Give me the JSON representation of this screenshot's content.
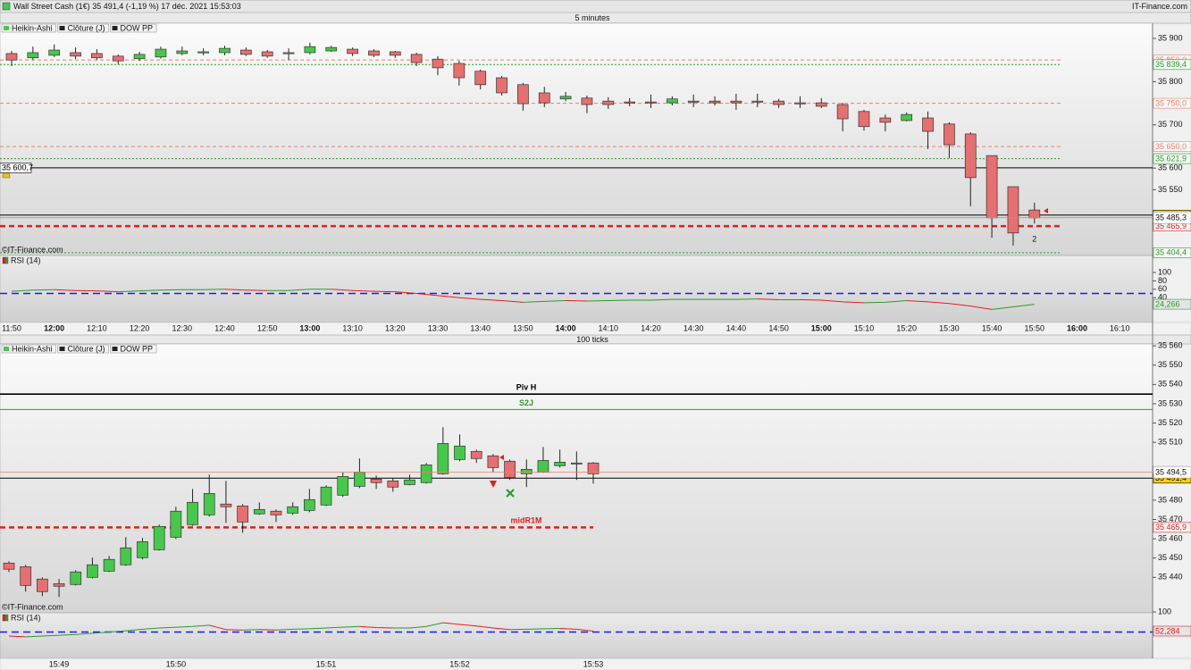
{
  "header": {
    "title": "Wall Street Cash (1€) 35 491,4 (-1,19 %) 17 déc. 2021 15:53:03",
    "brand": "IT-Finance.com"
  },
  "chart_data": [
    {
      "type": "candlestick",
      "title": "5 minutes",
      "legend": [
        "Heikin-Ashi",
        "Clôture (J)",
        "DOW PP"
      ],
      "watermark": "©IT-Finance.com",
      "up_color": "#46c84a",
      "down_color": "#e86f6f",
      "categories": [
        "11:50",
        null,
        "12:00",
        null,
        "12:10",
        null,
        "12:20",
        null,
        "12:30",
        null,
        "12:40",
        null,
        "12:50",
        null,
        "13:00",
        null,
        "13:10",
        null,
        "13:20",
        null,
        "13:30",
        null,
        "13:40",
        null,
        "13:50",
        null,
        "14:00",
        null,
        "14:10",
        null,
        "14:20",
        null,
        "14:30",
        null,
        "14:40",
        null,
        "14:50",
        null,
        "15:00",
        null,
        "15:10",
        null,
        "15:20",
        null,
        "15:30",
        null,
        "15:40",
        null,
        "15:50",
        null,
        "16:00",
        null,
        "16:10"
      ],
      "open": [
        35865,
        35855,
        35861,
        35867,
        35865,
        35859,
        35853,
        35857,
        35865,
        35867,
        35867,
        35873,
        35869,
        35867,
        35867,
        35871,
        35875,
        35871,
        35869,
        35863,
        35852,
        35842,
        35824,
        35809,
        35793,
        35774,
        35760,
        35762,
        35755,
        35753,
        35753,
        35751,
        35755,
        35755,
        35755,
        35755,
        35755,
        35751,
        35751,
        35747,
        35731,
        35716,
        35710,
        35716,
        35702,
        35679,
        35629,
        35557,
        35503,
        null,
        null,
        null,
        null
      ],
      "high": [
        35871,
        35881,
        35886,
        35879,
        35875,
        35863,
        35869,
        35881,
        35881,
        35877,
        35883,
        35879,
        35873,
        35877,
        35890,
        35883,
        35879,
        35875,
        35871,
        35867,
        35859,
        35848,
        35828,
        35813,
        35797,
        35788,
        35776,
        35768,
        35764,
        35762,
        35770,
        35766,
        35770,
        35766,
        35772,
        35772,
        35760,
        35766,
        35762,
        35751,
        35735,
        35724,
        35729,
        35731,
        35706,
        35683,
        35629,
        35557,
        35520,
        null,
        null,
        null,
        null
      ],
      "low": [
        35836,
        35850,
        35857,
        35852,
        35850,
        35840,
        35848,
        35853,
        35861,
        35861,
        35861,
        35859,
        35855,
        35850,
        35863,
        35869,
        35859,
        35857,
        35855,
        35836,
        35815,
        35791,
        35782,
        35768,
        35733,
        35741,
        35755,
        35727,
        35737,
        35743,
        35739,
        35745,
        35741,
        35745,
        35735,
        35741,
        35739,
        35739,
        35739,
        35685,
        35687,
        35685,
        35708,
        35644,
        35623,
        35512,
        35439,
        35421,
        35472,
        null,
        null,
        null,
        null
      ],
      "close": [
        35850,
        35867,
        35873,
        35859,
        35855,
        35848,
        35863,
        35875,
        35871,
        35869,
        35877,
        35863,
        35859,
        35865,
        35881,
        35879,
        35865,
        35861,
        35861,
        35844,
        35832,
        35809,
        35793,
        35774,
        35749,
        35751,
        35766,
        35747,
        35747,
        35751,
        35751,
        35760,
        35753,
        35751,
        35751,
        35753,
        35747,
        35749,
        35743,
        35714,
        35696,
        35706,
        35724,
        35685,
        35654,
        35578,
        35485,
        35450,
        35485,
        null,
        null,
        null,
        null
      ],
      "ylim": [
        35400,
        35933
      ],
      "yticks": [
        {
          "value": 35900,
          "label": "35 900"
        },
        {
          "value": 35800,
          "label": "35 800"
        },
        {
          "value": 35700,
          "label": "35 700"
        },
        {
          "value": 35600,
          "label": "35 600"
        },
        {
          "value": 35550,
          "label": "35 550"
        }
      ],
      "levels": [
        {
          "value": 35850,
          "label": "35 850,0",
          "color": "#e8806a",
          "style": "dashed"
        },
        {
          "value": 35839.4,
          "label": "35 839,4",
          "color": "#2a9a2a",
          "style": "dotted"
        },
        {
          "value": 35750,
          "label": "35 750,0",
          "color": "#e8806a",
          "style": "dashed"
        },
        {
          "value": 35650,
          "label": "35 650,0",
          "color": "#e8806a",
          "style": "dashed"
        },
        {
          "value": 35621.9,
          "label": "35 621,9",
          "color": "#2a9a2a",
          "style": "dotted"
        },
        {
          "value": 35600.7,
          "label": "35 600,7",
          "color": "#000000",
          "style": "solid",
          "full": true,
          "side": "left"
        },
        {
          "value": 35491.4,
          "label": "35 491,4",
          "color": "#000000",
          "style": "solid",
          "full": true,
          "label_bg": "#ffd400"
        },
        {
          "value": 35465.9,
          "label": "35 465,9",
          "color": "#e0201a",
          "style": "bold-dashed"
        },
        {
          "value": 35404.4,
          "label": "35 404,4",
          "color": "#2a9a2a",
          "style": "dotted"
        }
      ],
      "crosshair": {
        "value": 35485.3,
        "label": "35 485,3",
        "color": "#999999"
      },
      "annotations": [
        "2"
      ]
    },
    {
      "type": "line",
      "series": [
        {
          "name": "RSI (14)",
          "color_up": "#2a9a2a",
          "color_down": "#e02020",
          "values": [
            55,
            58,
            59,
            57,
            56,
            54,
            56,
            58,
            59,
            59,
            60,
            58,
            57,
            57,
            60,
            60,
            57,
            55,
            54,
            50,
            45,
            40,
            36,
            33,
            29,
            31,
            33,
            32,
            33,
            34,
            34,
            36,
            36,
            36,
            36,
            37,
            35,
            35,
            34,
            30,
            28,
            29,
            33,
            30,
            26,
            20,
            12,
            18,
            24.266
          ],
          "value_labels": [
            null,
            null,
            null,
            null,
            null,
            null,
            null,
            null,
            null,
            null,
            null,
            null,
            null,
            null,
            null,
            null,
            null,
            null,
            null,
            null,
            null,
            null,
            null,
            null,
            null,
            null,
            null,
            null,
            null,
            null,
            null,
            null,
            null,
            null,
            null,
            null,
            null,
            null,
            null,
            null,
            null,
            null,
            null,
            null,
            null,
            null,
            null,
            null,
            "24,266"
          ]
        }
      ],
      "ylim": [
        0,
        100
      ],
      "yticks": [
        100,
        80,
        60,
        40
      ],
      "levels": [
        {
          "value": 50,
          "color": "#1a1aee",
          "style": "dashed"
        }
      ]
    },
    {
      "type": "candlestick",
      "title": "100 ticks",
      "legend": [
        "Heikin-Ashi",
        "Clôture (J)",
        "DOW PP"
      ],
      "watermark": "©IT-Finance.com",
      "up_color": "#46c84a",
      "down_color": "#e86f6f",
      "categories": [
        null,
        null,
        null,
        "15:49",
        null,
        null,
        null,
        null,
        null,
        null,
        "15:50",
        null,
        null,
        null,
        null,
        null,
        null,
        null,
        null,
        "15:51",
        null,
        null,
        null,
        null,
        null,
        null,
        null,
        "15:52",
        null,
        null,
        null,
        null,
        null,
        null,
        null,
        "15:53"
      ],
      "open": [
        35447.4,
        35445.5,
        35439.1,
        35436.7,
        35436.3,
        35440.0,
        35443.2,
        35446.5,
        35450.2,
        35454.3,
        35460.8,
        35467.3,
        35472.4,
        35478.0,
        35477.0,
        35472.9,
        35474.3,
        35473.3,
        35474.7,
        35477.5,
        35482.6,
        35487.2,
        35490.9,
        35490.0,
        35488.1,
        35489.1,
        35493.7,
        35501.1,
        35505.3,
        35503.0,
        35500.2,
        35493.7,
        35494.6,
        35497.9,
        35498.8,
        35499.3
      ],
      "high": [
        35448.3,
        35446.5,
        35440.0,
        35439.1,
        35443.7,
        35450.2,
        35451.1,
        35460.8,
        35460.4,
        35467.3,
        35476.6,
        35485.8,
        35493.2,
        35490.0,
        35478.0,
        35478.9,
        35475.2,
        35478.9,
        35485.8,
        35487.7,
        35494.6,
        35501.6,
        35492.8,
        35491.4,
        35493.2,
        35499.3,
        35517.8,
        35514.1,
        35506.2,
        35503.9,
        35501.1,
        35501.1,
        35507.6,
        35506.2,
        35505.3,
        35499.7
      ],
      "low": [
        35442.8,
        35432.6,
        35430.3,
        35429.8,
        35435.8,
        35439.5,
        35442.8,
        35446.0,
        35449.3,
        35453.9,
        35459.9,
        35466.8,
        35471.5,
        35468.2,
        35463.1,
        35472.4,
        35468.7,
        35472.4,
        35473.8,
        35477.0,
        35481.7,
        35486.3,
        35485.8,
        35484.4,
        35487.7,
        35488.6,
        35493.2,
        35500.2,
        35499.3,
        35494.6,
        35490.5,
        35486.8,
        35494.2,
        35496.9,
        35490.5,
        35488.6
      ],
      "close": [
        35444.2,
        35435.8,
        35432.6,
        35435.4,
        35442.8,
        35446.5,
        35449.3,
        35455.3,
        35458.5,
        35466.4,
        35474.3,
        35478.9,
        35483.5,
        35476.6,
        35468.7,
        35475.2,
        35472.4,
        35476.6,
        35480.3,
        35486.8,
        35492.3,
        35494.6,
        35489.1,
        35486.8,
        35490.5,
        35498.3,
        35509.4,
        35508.1,
        35501.6,
        35496.9,
        35491.8,
        35496.0,
        35500.6,
        35499.7,
        35499.3,
        35493.7
      ],
      "ylim": [
        35423,
        35561
      ],
      "yticks": [
        {
          "value": 35560,
          "label": "35 560"
        },
        {
          "value": 35550,
          "label": "35 550"
        },
        {
          "value": 35540,
          "label": "35 540"
        },
        {
          "value": 35530,
          "label": "35 530"
        },
        {
          "value": 35520,
          "label": "35 520"
        },
        {
          "value": 35510,
          "label": "35 510"
        },
        {
          "value": 35480,
          "label": "35 480"
        },
        {
          "value": 35470,
          "label": "35 470"
        },
        {
          "value": 35460,
          "label": "35 460"
        },
        {
          "value": 35450,
          "label": "35 450"
        },
        {
          "value": 35440,
          "label": "35 440"
        }
      ],
      "levels": [
        {
          "value": 35535,
          "name": "Piv H",
          "color": "#000000",
          "style": "double",
          "full": true
        },
        {
          "value": 35527,
          "name": "S2J",
          "color": "#2a9a2a",
          "style": "solid",
          "full": true
        },
        {
          "value": 35491.4,
          "label": "35 491,4",
          "color": "#000000",
          "style": "solid",
          "full": true,
          "label_bg": "#ffd400"
        },
        {
          "value": 35465.9,
          "name": "midR1M",
          "label": "35 465,9",
          "color": "#e0201a",
          "style": "bold-dashed"
        }
      ],
      "crosshair": {
        "value": 35494.5,
        "label": "35 494,5",
        "color": "#e8806a"
      }
    },
    {
      "type": "line",
      "series": [
        {
          "name": "RSI (14)",
          "color_up": "#2a9a2a",
          "color_down": "#e02020",
          "values": [
            40,
            38,
            40,
            42,
            44,
            47,
            50,
            53,
            57,
            60,
            62,
            64,
            67,
            56,
            55,
            56,
            55,
            57,
            58,
            60,
            62,
            64,
            61,
            60,
            60,
            64,
            73,
            69,
            65,
            60,
            56,
            57,
            58,
            59,
            57,
            52.284
          ],
          "value_labels": [
            null,
            null,
            null,
            null,
            null,
            null,
            null,
            null,
            null,
            null,
            null,
            null,
            null,
            null,
            null,
            null,
            null,
            null,
            null,
            null,
            null,
            null,
            null,
            null,
            null,
            null,
            null,
            null,
            null,
            null,
            null,
            null,
            null,
            null,
            null,
            "52,284"
          ]
        }
      ],
      "ylim": [
        0,
        100
      ],
      "yticks": [
        100
      ],
      "levels": [
        {
          "value": 50,
          "color": "#1a1aee",
          "style": "dashed"
        }
      ]
    }
  ]
}
